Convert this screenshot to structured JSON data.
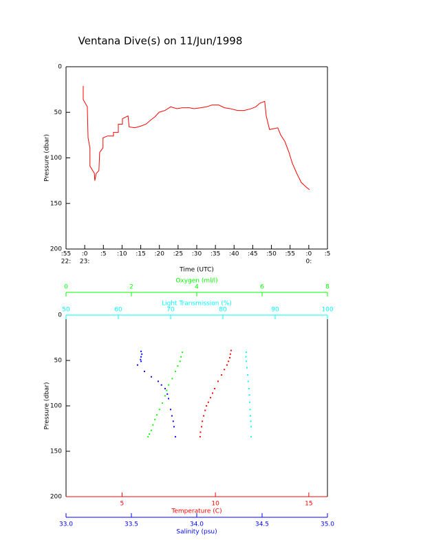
{
  "title": "Ventana Dive(s) on 11/Jun/1998",
  "chart_data": [
    {
      "type": "line",
      "xlabel": "Time (UTC)",
      "ylabel": "Pressure (dbar)",
      "xlim": [
        1375,
        1445
      ],
      "ylim": [
        0,
        200
      ],
      "yreversed": true,
      "xticks": [
        {
          "value": 1375,
          "label": ":55"
        },
        {
          "value": 1380,
          "label": ":0"
        },
        {
          "value": 1385,
          "label": ":5"
        },
        {
          "value": 1390,
          "label": ":10"
        },
        {
          "value": 1395,
          "label": ":15"
        },
        {
          "value": 1400,
          "label": ":20"
        },
        {
          "value": 1405,
          "label": ":25"
        },
        {
          "value": 1410,
          "label": ":30"
        },
        {
          "value": 1415,
          "label": ":35"
        },
        {
          "value": 1420,
          "label": ":40"
        },
        {
          "value": 1425,
          "label": ":45"
        },
        {
          "value": 1430,
          "label": ":50"
        },
        {
          "value": 1435,
          "label": ":55"
        },
        {
          "value": 1440,
          "label": ":0"
        },
        {
          "value": 1445,
          "label": ":5"
        }
      ],
      "xtick_hours": [
        {
          "value": 1375,
          "label": "22:"
        },
        {
          "value": 1380,
          "label": "23:"
        },
        {
          "value": 1440,
          "label": "0:"
        }
      ],
      "yticks": [
        0,
        50,
        100,
        150,
        200
      ],
      "color": "#ff0000",
      "x": [
        1379.6,
        1379.6,
        1380.7,
        1380.9,
        1381.4,
        1381.4,
        1382.6,
        1382.7,
        1383.1,
        1383.8,
        1384.0,
        1384.9,
        1384.9,
        1386.1,
        1387.7,
        1387.7,
        1389.0,
        1389.0,
        1390.1,
        1390.1,
        1391.6,
        1391.9,
        1393.4,
        1395.1,
        1396.4,
        1397.8,
        1398.8,
        1399.9,
        1401.5,
        1403.0,
        1404.7,
        1406.1,
        1408.0,
        1409.3,
        1411.1,
        1412.6,
        1414.1,
        1415.9,
        1417.4,
        1419.0,
        1420.9,
        1422.7,
        1424.6,
        1425.8,
        1426.9,
        1428.2,
        1428.6,
        1429.5,
        1431.7,
        1432.5,
        1433.6,
        1434.7,
        1435.6,
        1436.9,
        1438.0,
        1439.3,
        1440.2
      ],
      "y": [
        21,
        36,
        44,
        78,
        89,
        109,
        117,
        125,
        117,
        114,
        94,
        89,
        78,
        76,
        76,
        72,
        72,
        63,
        63,
        57,
        54,
        66,
        67,
        65,
        63,
        58,
        55,
        50,
        48,
        44,
        46,
        45,
        45,
        46,
        45,
        44,
        42,
        42,
        45,
        46,
        48,
        48,
        46,
        44,
        40,
        38,
        54,
        69,
        67,
        75,
        82,
        94,
        106,
        118,
        127,
        132,
        135
      ]
    },
    {
      "type": "scatter",
      "ylabel": "Pressure (dbar)",
      "ylim": [
        0,
        200
      ],
      "yreversed": true,
      "yticks": [
        0,
        50,
        100,
        150,
        200
      ],
      "axes": [
        {
          "label": "Oxygen (ml/l)",
          "color": "#00ff00",
          "position": "top2",
          "xlim": [
            0,
            8
          ],
          "xticks": [
            0,
            2,
            4,
            6,
            8
          ],
          "x": [
            3.56,
            3.52,
            3.49,
            3.42,
            3.35,
            3.25,
            3.14,
            3.08,
            3.03,
            2.95,
            2.86,
            2.78,
            2.72,
            2.66,
            2.61,
            2.55,
            2.51
          ],
          "y": [
            41,
            46,
            51,
            56,
            62,
            70,
            77,
            83,
            89,
            97,
            104,
            110,
            115,
            121,
            127,
            131,
            134
          ]
        },
        {
          "label": "Light Transmission (%)",
          "color": "#00ffff",
          "position": "top",
          "xlim": [
            50,
            100
          ],
          "xticks": [
            50,
            60,
            70,
            80,
            90,
            100
          ],
          "x": [
            84.47,
            84.4,
            84.47,
            84.6,
            84.74,
            84.85,
            85.0,
            85.08,
            85.13,
            85.2,
            85.26,
            85.33,
            85.39,
            85.39
          ],
          "y": [
            41,
            46,
            51,
            58,
            66,
            73,
            81,
            88,
            96,
            104,
            111,
            117,
            123,
            134
          ]
        },
        {
          "label": "Temperature (C)",
          "color": "#ff0000",
          "position": "bottom",
          "xlim": [
            2,
            16
          ],
          "xticks": [
            5,
            10,
            15
          ],
          "x": [
            10.84,
            10.8,
            10.77,
            10.7,
            10.62,
            10.48,
            10.33,
            10.14,
            9.96,
            9.85,
            9.74,
            9.62,
            9.52,
            9.45,
            9.37,
            9.3,
            9.26,
            9.2,
            9.18
          ],
          "y": [
            39,
            43,
            47,
            51,
            55,
            60,
            66,
            73,
            81,
            86,
            91,
            96,
            100,
            105,
            111,
            117,
            123,
            129,
            134
          ]
        },
        {
          "label": "Salinity (psu)",
          "color": "#0000ff",
          "position": "bottom2",
          "xlim": [
            33,
            35
          ],
          "xticks": [
            {
              "value": 33,
              "label": "33.0"
            },
            {
              "value": 33.5,
              "label": "33.5"
            },
            {
              "value": 34,
              "label": "34.0"
            },
            {
              "value": 34.5,
              "label": "34.5"
            },
            {
              "value": 35,
              "label": "35.0"
            }
          ],
          "x": [
            33.574,
            33.58,
            33.574,
            33.57,
            33.574,
            33.547,
            33.6,
            33.653,
            33.705,
            33.73,
            33.758,
            33.775,
            33.784,
            33.8,
            33.81,
            33.82,
            33.826,
            33.837
          ],
          "y": [
            40,
            43,
            46,
            49,
            51,
            55,
            62,
            68,
            73,
            77,
            81,
            87,
            92,
            104,
            111,
            117,
            123,
            134
          ]
        }
      ]
    }
  ]
}
